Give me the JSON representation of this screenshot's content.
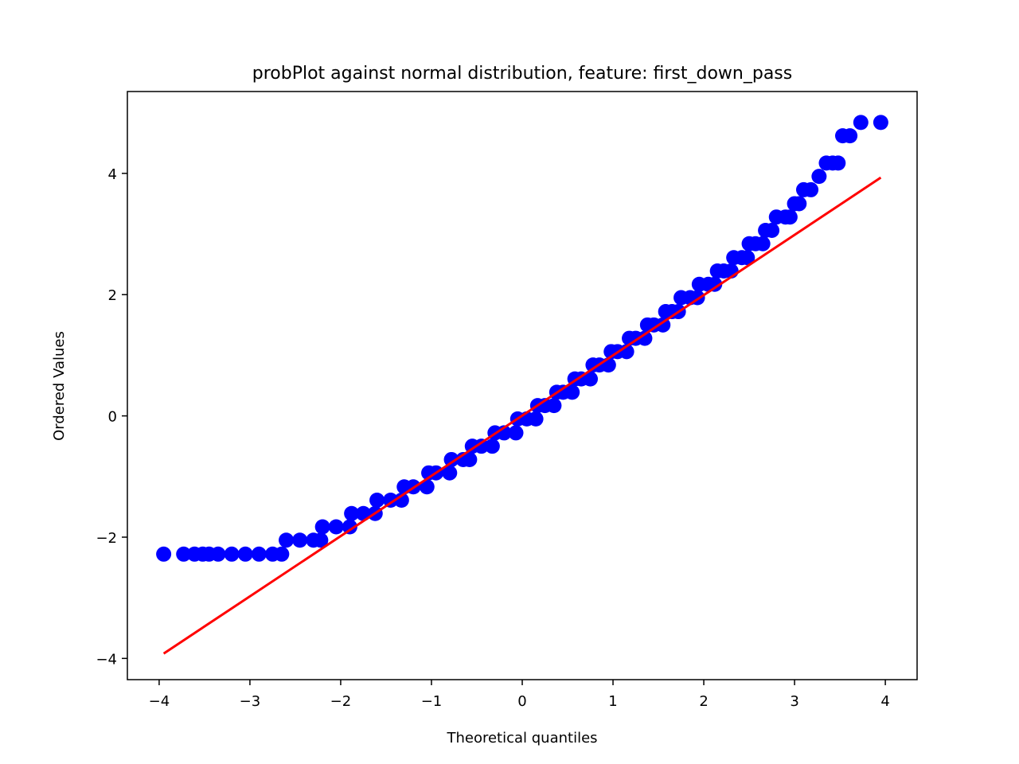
{
  "chart_data": {
    "type": "scatter",
    "title": "probPlot against normal distribution, feature: first_down_pass",
    "xlabel": "Theoretical quantiles",
    "ylabel": "Ordered Values",
    "xlim": [
      -4.35,
      4.35
    ],
    "ylim": [
      -4.35,
      5.35
    ],
    "xticks": [
      -4,
      -3,
      -2,
      -1,
      0,
      1,
      2,
      3,
      4
    ],
    "xtick_labels": [
      "−4",
      "−3",
      "−2",
      "−1",
      "0",
      "1",
      "2",
      "3",
      "4"
    ],
    "yticks": [
      -4,
      -2,
      0,
      2,
      4
    ],
    "ytick_labels": [
      "−4",
      "−2",
      "0",
      "2",
      "4"
    ],
    "grid": false,
    "marker_color": "#0000ff",
    "line_color": "#ff0000",
    "fit_line": {
      "x": [
        -3.95,
        3.95
      ],
      "y": [
        -3.92,
        3.93
      ]
    },
    "points": [
      [
        -3.95,
        -2.28
      ],
      [
        -3.73,
        -2.28
      ],
      [
        -3.61,
        -2.28
      ],
      [
        -3.52,
        -2.28
      ],
      [
        -3.45,
        -2.28
      ],
      [
        -3.35,
        -2.28
      ],
      [
        -3.2,
        -2.28
      ],
      [
        -3.05,
        -2.28
      ],
      [
        -2.9,
        -2.28
      ],
      [
        -2.75,
        -2.28
      ],
      [
        -2.65,
        -2.28
      ],
      [
        -2.6,
        -2.05
      ],
      [
        -2.45,
        -2.05
      ],
      [
        -2.3,
        -2.05
      ],
      [
        -2.22,
        -2.05
      ],
      [
        -2.2,
        -1.83
      ],
      [
        -2.05,
        -1.83
      ],
      [
        -1.9,
        -1.83
      ],
      [
        -1.88,
        -1.61
      ],
      [
        -1.75,
        -1.61
      ],
      [
        -1.62,
        -1.61
      ],
      [
        -1.6,
        -1.39
      ],
      [
        -1.45,
        -1.39
      ],
      [
        -1.33,
        -1.39
      ],
      [
        -1.3,
        -1.17
      ],
      [
        -1.2,
        -1.17
      ],
      [
        -1.05,
        -1.17
      ],
      [
        -1.03,
        -0.94
      ],
      [
        -0.95,
        -0.94
      ],
      [
        -0.8,
        -0.94
      ],
      [
        -0.78,
        -0.72
      ],
      [
        -0.65,
        -0.72
      ],
      [
        -0.58,
        -0.72
      ],
      [
        -0.55,
        -0.5
      ],
      [
        -0.45,
        -0.5
      ],
      [
        -0.33,
        -0.5
      ],
      [
        -0.3,
        -0.28
      ],
      [
        -0.2,
        -0.28
      ],
      [
        -0.07,
        -0.28
      ],
      [
        -0.05,
        -0.05
      ],
      [
        0.05,
        -0.05
      ],
      [
        0.15,
        -0.05
      ],
      [
        0.17,
        0.17
      ],
      [
        0.25,
        0.17
      ],
      [
        0.35,
        0.17
      ],
      [
        0.38,
        0.39
      ],
      [
        0.45,
        0.39
      ],
      [
        0.55,
        0.39
      ],
      [
        0.58,
        0.61
      ],
      [
        0.65,
        0.61
      ],
      [
        0.75,
        0.61
      ],
      [
        0.78,
        0.84
      ],
      [
        0.85,
        0.84
      ],
      [
        0.95,
        0.84
      ],
      [
        0.98,
        1.06
      ],
      [
        1.05,
        1.06
      ],
      [
        1.15,
        1.06
      ],
      [
        1.18,
        1.28
      ],
      [
        1.25,
        1.28
      ],
      [
        1.35,
        1.28
      ],
      [
        1.38,
        1.5
      ],
      [
        1.45,
        1.5
      ],
      [
        1.55,
        1.5
      ],
      [
        1.58,
        1.72
      ],
      [
        1.65,
        1.72
      ],
      [
        1.72,
        1.72
      ],
      [
        1.75,
        1.95
      ],
      [
        1.85,
        1.95
      ],
      [
        1.93,
        1.95
      ],
      [
        1.95,
        2.17
      ],
      [
        2.05,
        2.17
      ],
      [
        2.12,
        2.17
      ],
      [
        2.15,
        2.39
      ],
      [
        2.22,
        2.39
      ],
      [
        2.3,
        2.39
      ],
      [
        2.33,
        2.61
      ],
      [
        2.42,
        2.61
      ],
      [
        2.48,
        2.61
      ],
      [
        2.5,
        2.84
      ],
      [
        2.57,
        2.84
      ],
      [
        2.65,
        2.84
      ],
      [
        2.68,
        3.06
      ],
      [
        2.75,
        3.06
      ],
      [
        2.8,
        3.28
      ],
      [
        2.9,
        3.28
      ],
      [
        2.95,
        3.28
      ],
      [
        3.0,
        3.5
      ],
      [
        3.05,
        3.5
      ],
      [
        3.1,
        3.73
      ],
      [
        3.18,
        3.73
      ],
      [
        3.27,
        3.95
      ],
      [
        3.35,
        4.17
      ],
      [
        3.42,
        4.17
      ],
      [
        3.48,
        4.17
      ],
      [
        3.53,
        4.62
      ],
      [
        3.61,
        4.62
      ],
      [
        3.73,
        4.84
      ],
      [
        3.95,
        4.84
      ]
    ]
  }
}
